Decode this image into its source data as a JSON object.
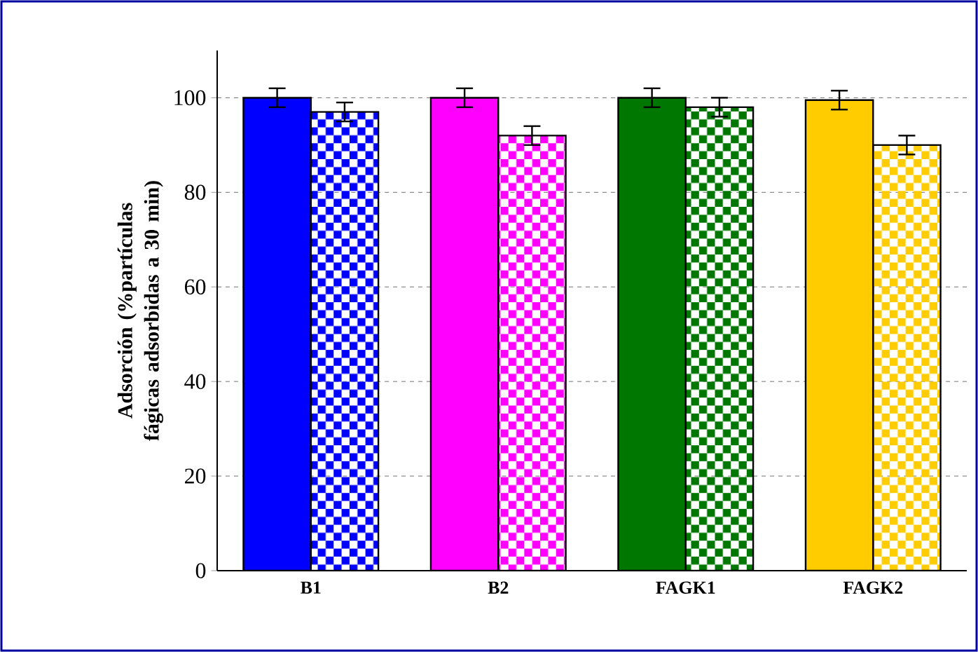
{
  "chart_data": {
    "type": "bar",
    "ylabel": "Adsorción (%partículas fágicas adsorbidas a 30 min)",
    "categories": [
      "B1",
      "B2",
      "FAGK1",
      "FAGK2"
    ],
    "series": [
      {
        "colors": [
          "#0000ff",
          "#ff00ff",
          "#007700",
          "#ffcc00"
        ],
        "values": [
          100,
          100,
          100,
          99.5
        ],
        "errors": [
          2,
          2,
          2,
          2
        ]
      },
      {
        "colors": [
          "#0000ff",
          "#ff00ff",
          "#007700",
          "#ffcc00"
        ],
        "values": [
          97,
          92,
          98,
          90
        ],
        "errors": [
          2,
          2,
          2,
          2
        ]
      }
    ],
    "ylim": [
      0,
      110
    ],
    "yticks": [
      0,
      20,
      40,
      60,
      80,
      100
    ],
    "grid": "y"
  }
}
